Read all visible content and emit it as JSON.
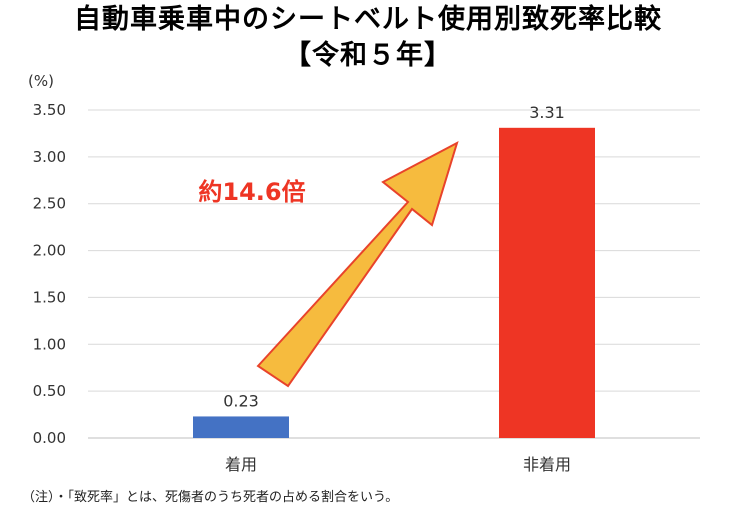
{
  "title": {
    "line1": "自動車乗車中のシートベルト使用別致死率比較",
    "line2": "【令和５年】"
  },
  "chart_data": {
    "type": "bar",
    "categories": [
      "着用",
      "非着用"
    ],
    "values": [
      0.23,
      3.31
    ],
    "data_labels": [
      "0.23",
      "3.31"
    ],
    "ylabel": "(%)",
    "ylim": [
      0,
      3.5
    ],
    "yticks": [
      0,
      0.5,
      1.0,
      1.5,
      2.0,
      2.5,
      3.0,
      3.5
    ],
    "ytick_labels": [
      "0.00",
      "0.50",
      "1.00",
      "1.50",
      "2.00",
      "2.50",
      "3.00",
      "3.50"
    ],
    "grid": true,
    "bar_colors": [
      "#4472C4",
      "#EE3524"
    ],
    "annotation": {
      "text": "約14.6倍",
      "color": "#EE3524",
      "arrow_color": "#F6BB3E"
    }
  },
  "note": "（注）・「致死率」とは、死傷者のうち死者の占める割合をいう。"
}
